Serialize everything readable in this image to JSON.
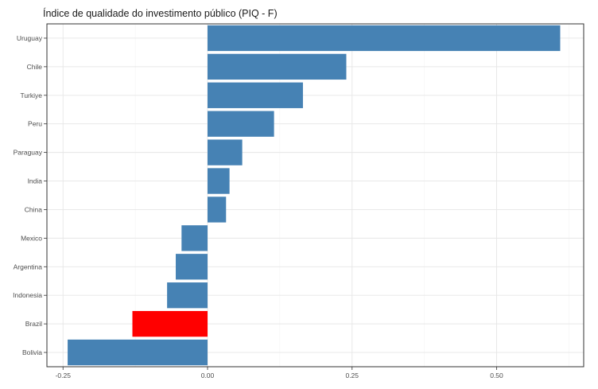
{
  "chart_data": {
    "type": "bar",
    "orientation": "horizontal",
    "title": "Índice de qualidade do investimento público (PIQ - F)",
    "xlabel": "",
    "ylabel": "",
    "categories": [
      "Uruguay",
      "Chile",
      "Turkiye",
      "Peru",
      "Paraguay",
      "India",
      "China",
      "Mexico",
      "Argentina",
      "Indonesia",
      "Brazil",
      "Bolivia"
    ],
    "values": [
      0.61,
      0.24,
      0.165,
      0.115,
      0.06,
      0.038,
      0.032,
      -0.045,
      -0.055,
      -0.07,
      -0.13,
      -0.242
    ],
    "colors": [
      "#4682b4",
      "#4682b4",
      "#4682b4",
      "#4682b4",
      "#4682b4",
      "#4682b4",
      "#4682b4",
      "#4682b4",
      "#4682b4",
      "#4682b4",
      "#ff0000",
      "#4682b4"
    ],
    "x_ticks": [
      -0.25,
      0.0,
      0.25,
      0.5
    ],
    "x_tick_labels": [
      "-0.25",
      "0.00",
      "0.25",
      "0.50"
    ],
    "xlim": [
      -0.28,
      0.65
    ],
    "grid": true,
    "legend": "none"
  }
}
